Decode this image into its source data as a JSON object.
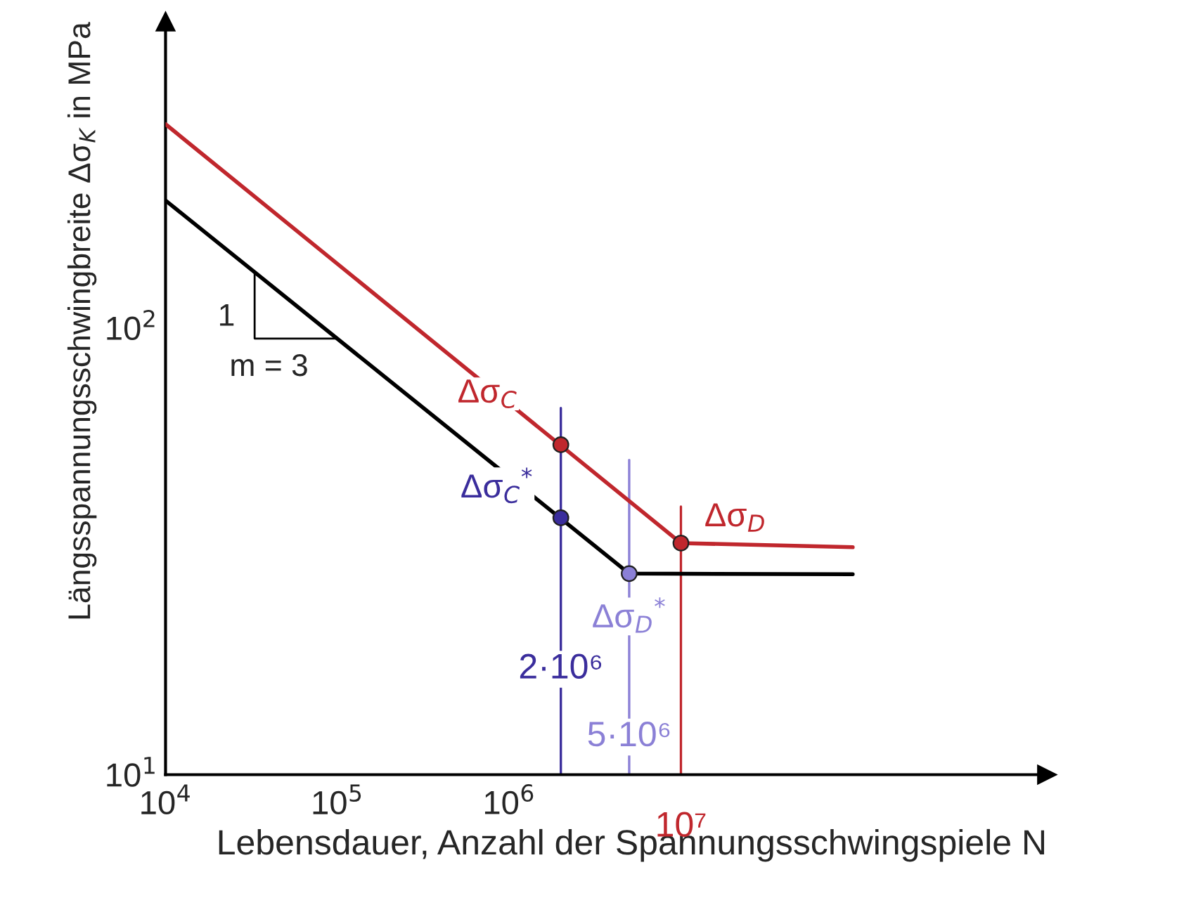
{
  "chart_data": {
    "type": "line",
    "xlabel": "Lebensdauer, Anzahl der Spannungsschwingspiele N",
    "ylabel": "Längsspannungsschwingbreite Δσ$_{K}$ in MPa",
    "log": "xy",
    "grid": false,
    "legend": false,
    "xlim": [
      10000,
      1350000000
    ],
    "ylim": [
      10,
      485
    ],
    "xticks": [
      {
        "value": 10000,
        "label": "10$^{4}$"
      },
      {
        "value": 100000,
        "label": "10$^{5}$"
      },
      {
        "value": 1000000,
        "label": "10$^{6}$"
      }
    ],
    "yticks": [
      {
        "value": 10,
        "label": "10$^{1}$"
      },
      {
        "value": 100,
        "label": "10$^{2}$"
      }
    ],
    "series": [
      {
        "type": "line",
        "color": "#c0272d",
        "x": [
          10000,
          10000000,
          100000000
        ],
        "values": [
          286,
          33,
          32.3
        ]
      },
      {
        "type": "line",
        "color": "#000000",
        "x": [
          10000,
          5000000,
          100000000
        ],
        "values": [
          193,
          28.2,
          28.1
        ]
      },
      {
        "type": "scatter",
        "color": "#c0272d",
        "x": [
          2000000,
          10000000
        ],
        "values": [
          54.8,
          33
        ],
        "marker": "circle"
      },
      {
        "type": "scatter",
        "color": "#3a2d9c",
        "x": [
          2000000
        ],
        "values": [
          37.6
        ],
        "marker": "circle"
      },
      {
        "type": "scatter",
        "color": "#8b80d6",
        "x": [
          5000000
        ],
        "values": [
          28.2
        ],
        "marker": "circle"
      }
    ],
    "ref_lines": [
      {
        "axis": "x",
        "value": 2000000,
        "label": "2·10⁶",
        "color": "#3a2d9c"
      },
      {
        "axis": "x",
        "value": 5000000,
        "label": "5·10⁶",
        "color": "#8b80d6"
      },
      {
        "axis": "x",
        "value": 10000000,
        "label": "10⁷",
        "color": "#c0272d"
      }
    ],
    "annotations": [
      {
        "text": "Δσ$_{C}$",
        "x": 2000000,
        "y": 54.8
      },
      {
        "text": "Δσ$_{C}$$^{*}$",
        "x": 2000000,
        "y": 37.6
      },
      {
        "text": "Δσ$_{D}$",
        "x": 10000000,
        "y": 33
      },
      {
        "text": "Δσ$_{D}$$^{*}$",
        "x": 5000000,
        "y": 28.2
      },
      {
        "text": "1",
        "x": 33000,
        "y": 133
      },
      {
        "text": "m = 3",
        "x": 100000,
        "y": 94.7
      }
    ]
  }
}
